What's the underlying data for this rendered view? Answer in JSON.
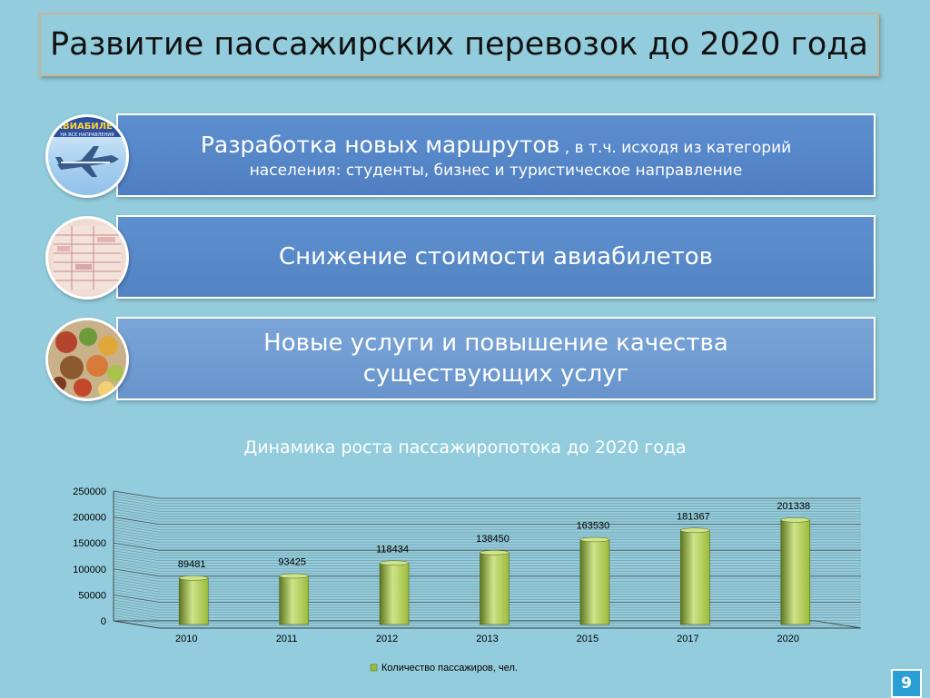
{
  "title": "Развитие пассажирских перевозок до 2020 года",
  "banners": {
    "b1_main": "Разработка новых маршрутов",
    "b1_sub": " , в т.ч. исходя из категорий",
    "b1_line2": "населения: студенты, бизнес и туристическое направление",
    "b2": "Снижение стоимости авиабилетов",
    "b3_line1": "Новые услуги и повышение качества",
    "b3_line2": "существующих услуг"
  },
  "icons": {
    "circle1_text1": "АВИАБИЛЕТ",
    "circle1_text2": "НА ВСЕ НАПРАВЛЕНИЯ"
  },
  "chart_title": "Динамика роста пассажиропотока до 2020 года",
  "chart_data": {
    "type": "bar",
    "categories": [
      "2010",
      "2011",
      "2012",
      "2013",
      "2015",
      "2017",
      "2020"
    ],
    "values": [
      89481,
      93425,
      118434,
      138450,
      163530,
      181367,
      201338
    ],
    "series_name": "Количество пассажиров, чел.",
    "ylim": [
      0,
      250000
    ],
    "yticks": [
      0,
      50000,
      100000,
      150000,
      200000,
      250000
    ],
    "legend": "bottom",
    "grid": true,
    "colors": {
      "bar": "#9cbb3a",
      "bar_dark": "#5d7620",
      "bar_light": "#cfe38a"
    }
  },
  "page_number": "9",
  "colors": {
    "background": "#93cddd",
    "banner": "#5585c6",
    "accent": "#2a9fd6"
  }
}
